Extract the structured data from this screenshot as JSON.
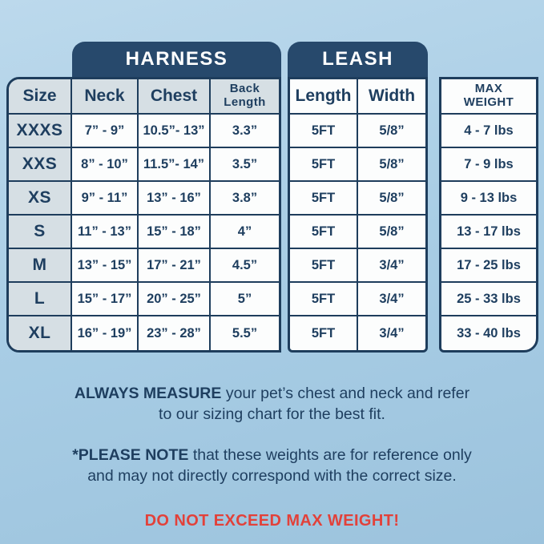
{
  "chart_data": {
    "type": "table",
    "groups": {
      "harness_label": "HARNESS",
      "leash_label": "LEASH"
    },
    "columns": [
      "Size",
      "Neck",
      "Chest",
      "Back Length",
      "Length",
      "Width",
      "MAX WEIGHT"
    ],
    "rows": [
      [
        "XXXS",
        "7” - 9”",
        "10.5”- 13”",
        "3.3”",
        "5FT",
        "5/8”",
        "4 - 7 lbs"
      ],
      [
        "XXS",
        "8” - 10”",
        "11.5”- 14”",
        "3.5”",
        "5FT",
        "5/8”",
        "7 - 9 lbs"
      ],
      [
        "XS",
        "9” - 11”",
        "13” - 16”",
        "3.8”",
        "5FT",
        "5/8”",
        "9 - 13 lbs"
      ],
      [
        "S",
        "11” - 13”",
        "15” - 18”",
        "4”",
        "5FT",
        "5/8”",
        "13 - 17 lbs"
      ],
      [
        "M",
        "13” - 15”",
        "17” - 21”",
        "4.5”",
        "5FT",
        "3/4”",
        "17 - 25 lbs"
      ],
      [
        "L",
        "15” - 17”",
        "20” - 25”",
        "5”",
        "5FT",
        "3/4”",
        "25 - 33 lbs"
      ],
      [
        "XL",
        "16” - 19”",
        "23” - 28”",
        "5.5”",
        "5FT",
        "3/4”",
        "33 - 40 lbs"
      ]
    ]
  },
  "display": {
    "headers": {
      "size": "Size",
      "neck": "Neck",
      "chest": "Chest",
      "back_length": "Back\nLength",
      "length": "Length",
      "width": "Width",
      "max_weight": "MAX\nWEIGHT"
    }
  },
  "notes": {
    "measure_lead": "ALWAYS MEASURE",
    "measure_body": " your pet’s chest and neck and refer\nto our sizing chart for the best fit.",
    "note_lead": "*PLEASE NOTE",
    "note_body": " that these weights are for reference only\nand may not directly correspond with the correct size.",
    "warning": "DO NOT EXCEED MAX WEIGHT!"
  },
  "colors": {
    "background": "#a8cde5",
    "navy": "#1e3d5c",
    "tab_bg": "#27496c",
    "header_gray": "#d6dfe4",
    "cell_white": "#fcfdfd",
    "warning_red": "#e2413a"
  }
}
